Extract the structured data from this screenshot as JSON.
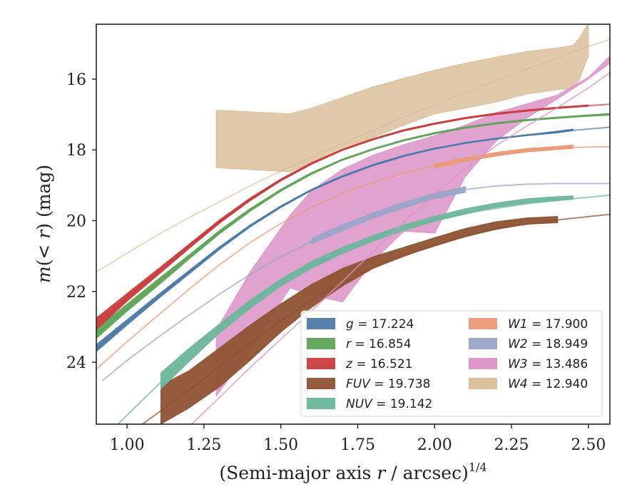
{
  "chart_data": {
    "type": "line",
    "title": "",
    "xlabel": "(Semi-major axis r / arcsec)^1/4",
    "xlabel_parts": {
      "prefix": "(Semi-major axis ",
      "var": "r",
      "middle": " / arcsec)",
      "sup": "1/4"
    },
    "ylabel": "m(< r) (mag)",
    "ylabel_parts": {
      "m": "m",
      "open": "(",
      "lt": "< ",
      "r": "r",
      "close": ")",
      "unit": " (mag)"
    },
    "xlim": [
      0.9,
      2.57
    ],
    "ylim": [
      25.75,
      14.45
    ],
    "y_inverted": true,
    "x_ticks": [
      1.0,
      1.25,
      1.5,
      1.75,
      2.0,
      2.25,
      2.5
    ],
    "x_tick_labels": [
      "1.00",
      "1.25",
      "1.50",
      "1.75",
      "2.00",
      "2.25",
      "2.50"
    ],
    "y_ticks": [
      16,
      18,
      20,
      22,
      24
    ],
    "y_tick_labels": [
      "16",
      "18",
      "20",
      "22",
      "24"
    ],
    "grid": false,
    "legend_position": "lower-right",
    "legend_columns": 2,
    "series": [
      {
        "name": "g = 17.224",
        "var": "g",
        "value": "17.224",
        "color": "#4c7aa8",
        "model_x": [
          0.9,
          1.0,
          1.1,
          1.2,
          1.3,
          1.4,
          1.5,
          1.6,
          1.7,
          1.8,
          1.9,
          2.0,
          2.1,
          2.2,
          2.3,
          2.4,
          2.5,
          2.57
        ],
        "model_y": [
          23.62,
          22.87,
          22.16,
          21.47,
          20.78,
          20.15,
          19.6,
          19.13,
          18.75,
          18.43,
          18.17,
          17.96,
          17.8,
          17.68,
          17.58,
          17.49,
          17.41,
          17.36
        ],
        "band_x": [
          0.9,
          1.0,
          1.1,
          1.2,
          1.3,
          1.4,
          1.5,
          1.6,
          1.7,
          1.8,
          1.9,
          2.0,
          2.1,
          2.2,
          2.3,
          2.4,
          2.45
        ],
        "band_lo": [
          23.5,
          22.8,
          22.1,
          21.42,
          20.74,
          20.12,
          19.58,
          19.11,
          18.73,
          18.41,
          18.15,
          17.95,
          17.79,
          17.67,
          17.57,
          17.47,
          17.41
        ],
        "band_hi": [
          23.7,
          22.95,
          22.22,
          21.52,
          20.82,
          20.18,
          19.63,
          19.15,
          18.77,
          18.45,
          18.19,
          17.98,
          17.82,
          17.7,
          17.6,
          17.52,
          17.46
        ]
      },
      {
        "name": "r = 16.854",
        "var": "r",
        "value": "16.854",
        "color": "#5fa458",
        "model_x": [
          0.9,
          1.0,
          1.1,
          1.2,
          1.3,
          1.4,
          1.5,
          1.6,
          1.7,
          1.8,
          1.9,
          2.0,
          2.1,
          2.2,
          2.3,
          2.4,
          2.5,
          2.57
        ],
        "model_y": [
          23.22,
          22.47,
          21.75,
          21.04,
          20.33,
          19.7,
          19.14,
          18.66,
          18.28,
          17.98,
          17.73,
          17.53,
          17.37,
          17.25,
          17.16,
          17.09,
          17.03,
          17.0
        ],
        "band_x": [
          0.9,
          1.0,
          1.1,
          1.2,
          1.3,
          1.4,
          1.5,
          1.6,
          1.7,
          1.8,
          1.9,
          2.0,
          2.1,
          2.2,
          2.3,
          2.4,
          2.5,
          2.57
        ],
        "band_lo": [
          23.05,
          22.36,
          21.66,
          20.98,
          20.28,
          19.66,
          19.11,
          18.64,
          18.26,
          17.96,
          17.71,
          17.51,
          17.35,
          17.23,
          17.14,
          17.07,
          17.01,
          16.97
        ],
        "band_hi": [
          23.33,
          22.56,
          21.84,
          21.1,
          20.38,
          19.74,
          19.17,
          18.69,
          18.3,
          18.0,
          17.75,
          17.55,
          17.39,
          17.27,
          17.18,
          17.11,
          17.05,
          17.02
        ]
      },
      {
        "name": "z = 16.521",
        "var": "z",
        "value": "16.521",
        "color": "#c83c3c",
        "model_x": [
          0.9,
          1.0,
          1.1,
          1.2,
          1.3,
          1.4,
          1.5,
          1.6,
          1.7,
          1.8,
          1.9,
          2.0,
          2.1,
          2.2,
          2.3,
          2.4,
          2.5,
          2.57
        ],
        "model_y": [
          22.95,
          22.18,
          21.46,
          20.74,
          20.03,
          19.4,
          18.85,
          18.38,
          18.0,
          17.7,
          17.45,
          17.26,
          17.1,
          16.98,
          16.89,
          16.81,
          16.75,
          16.71
        ],
        "band_x": [
          0.9,
          1.0,
          1.1,
          1.2,
          1.3,
          1.4,
          1.5,
          1.6,
          1.7,
          1.8,
          1.9,
          2.0,
          2.1,
          2.2,
          2.3,
          2.4,
          2.5
        ],
        "band_lo": [
          22.75,
          22.06,
          21.37,
          20.68,
          19.98,
          19.36,
          18.82,
          18.36,
          17.98,
          17.68,
          17.43,
          17.24,
          17.08,
          16.96,
          16.87,
          16.79,
          16.73
        ],
        "band_hi": [
          23.08,
          22.28,
          21.54,
          20.8,
          20.08,
          19.44,
          18.88,
          18.41,
          18.02,
          17.72,
          17.47,
          17.28,
          17.12,
          17.0,
          16.91,
          16.83,
          16.77
        ]
      },
      {
        "name": "FUV = 19.738",
        "var": "FUV",
        "value": "19.738",
        "color": "#8e5332",
        "model_x": [
          1.05,
          1.2,
          1.4,
          1.6,
          1.8,
          2.0,
          2.2,
          2.4,
          2.57
        ],
        "model_y": [
          25.75,
          24.8,
          23.45,
          22.22,
          21.33,
          20.68,
          20.22,
          19.98,
          19.82
        ],
        "band_x": [
          1.11,
          1.2,
          1.3,
          1.4,
          1.5,
          1.6,
          1.7,
          1.8,
          1.9,
          2.0,
          2.1,
          2.2,
          2.3,
          2.4
        ],
        "band_lo": [
          25.75,
          25.3,
          24.7,
          23.95,
          23.15,
          22.45,
          21.85,
          21.35,
          21.0,
          20.72,
          20.45,
          20.25,
          20.1,
          20.06
        ],
        "band_hi": [
          24.65,
          24.25,
          23.6,
          22.95,
          22.35,
          21.8,
          21.35,
          21.02,
          20.75,
          20.48,
          20.22,
          20.03,
          19.92,
          19.88
        ]
      },
      {
        "name": "NUV = 19.142",
        "var": "NUV",
        "value": "19.142",
        "color": "#6db69c",
        "model_x": [
          0.97,
          1.1,
          1.25,
          1.4,
          1.55,
          1.7,
          1.85,
          2.0,
          2.15,
          2.3,
          2.45,
          2.57
        ],
        "model_y": [
          25.75,
          24.65,
          23.35,
          22.28,
          21.45,
          20.85,
          20.38,
          20.0,
          19.72,
          19.52,
          19.38,
          19.28
        ],
        "band_x": [
          1.11,
          1.2,
          1.3,
          1.4,
          1.5,
          1.6,
          1.7,
          1.8,
          1.9,
          2.0,
          2.1,
          2.2,
          2.3,
          2.4,
          2.45
        ],
        "band_lo": [
          24.75,
          24.0,
          23.18,
          22.48,
          21.85,
          21.35,
          20.93,
          20.58,
          20.28,
          20.02,
          19.8,
          19.62,
          19.5,
          19.43,
          19.4
        ],
        "band_hi": [
          24.3,
          23.62,
          22.92,
          22.25,
          21.65,
          21.15,
          20.75,
          20.42,
          20.12,
          19.88,
          19.66,
          19.5,
          19.38,
          19.32,
          19.3
        ]
      },
      {
        "name": "W1 = 17.900",
        "var": "W1",
        "value": "17.900",
        "color": "#eb9a78",
        "model_x": [
          0.9,
          1.0,
          1.1,
          1.2,
          1.3,
          1.4,
          1.5,
          1.6,
          1.7,
          1.8,
          1.9,
          2.0,
          2.1,
          2.2,
          2.3,
          2.4,
          2.5,
          2.57
        ],
        "model_y": [
          24.2,
          23.42,
          22.68,
          21.95,
          21.25,
          20.62,
          20.08,
          19.62,
          19.24,
          18.92,
          18.66,
          18.44,
          18.26,
          18.12,
          18.02,
          17.96,
          17.92,
          17.91
        ],
        "band_x": [
          2.0,
          2.1,
          2.2,
          2.3,
          2.4,
          2.45
        ],
        "band_lo": [
          18.52,
          18.33,
          18.17,
          18.06,
          17.99,
          17.96
        ],
        "band_hi": [
          18.4,
          18.22,
          18.07,
          17.96,
          17.9,
          17.86
        ]
      },
      {
        "name": "W2 = 18.949",
        "var": "W2",
        "value": "18.949",
        "color": "#9aa5c8",
        "model_x": [
          0.92,
          1.0,
          1.1,
          1.2,
          1.3,
          1.4,
          1.5,
          1.6,
          1.7,
          1.8,
          1.9,
          2.0,
          2.1,
          2.2,
          2.3,
          2.4,
          2.5,
          2.57
        ],
        "model_y": [
          24.52,
          23.95,
          23.3,
          22.68,
          22.08,
          21.52,
          21.02,
          20.58,
          20.2,
          19.85,
          19.55,
          19.3,
          19.12,
          19.02,
          18.97,
          18.95,
          18.95,
          18.95
        ],
        "band_x": [
          1.6,
          1.7,
          1.8,
          1.9,
          2.0,
          2.1
        ],
        "band_lo": [
          20.66,
          20.28,
          19.93,
          19.64,
          19.38,
          19.2
        ],
        "band_hi": [
          20.5,
          20.12,
          19.78,
          19.48,
          19.22,
          19.04
        ]
      },
      {
        "name": "W3 = 13.486",
        "var": "W3",
        "value": "13.486",
        "color": "#db93c8",
        "model_x": [
          1.21,
          1.3,
          1.4,
          1.5,
          1.6,
          1.7,
          1.8,
          1.9,
          2.0,
          2.1,
          2.2,
          2.3,
          2.4,
          2.5,
          2.57
        ],
        "model_y": [
          25.75,
          25.0,
          24.15,
          23.35,
          22.55,
          21.72,
          20.88,
          20.05,
          19.25,
          18.52,
          17.88,
          17.32,
          16.8,
          16.25,
          15.82
        ],
        "band_x": [
          1.29,
          1.4,
          1.53,
          1.6,
          1.7,
          1.8,
          1.9,
          2.0,
          2.1,
          2.2,
          2.3,
          2.4,
          2.5,
          2.57
        ],
        "band_lo": [
          24.95,
          23.65,
          21.9,
          22.1,
          22.3,
          21.15,
          20.3,
          20.35,
          18.75,
          17.75,
          17.1,
          16.55,
          16.0,
          15.55
        ],
        "band_hi": [
          23.1,
          21.45,
          19.85,
          19.15,
          18.55,
          18.15,
          17.85,
          17.6,
          17.3,
          16.95,
          16.7,
          16.45,
          15.95,
          15.35
        ]
      },
      {
        "name": "W4 = 12.940",
        "var": "W4",
        "value": "12.940",
        "color": "#d9bd98",
        "model_x": [
          0.9,
          1.0,
          1.1,
          1.2,
          1.3,
          1.4,
          1.5,
          1.6,
          1.7,
          1.8,
          1.9,
          2.0,
          2.1,
          2.2,
          2.3,
          2.4,
          2.5,
          2.57
        ],
        "model_y": [
          21.45,
          20.92,
          20.4,
          19.92,
          19.47,
          19.02,
          18.6,
          18.2,
          17.82,
          17.45,
          17.08,
          16.72,
          16.38,
          16.05,
          15.72,
          15.4,
          15.08,
          14.88
        ],
        "band_x": [
          1.29,
          1.53,
          1.6,
          1.7,
          1.8,
          1.9,
          2.0,
          2.1,
          2.2,
          2.3,
          2.4,
          2.45,
          2.47,
          2.5
        ],
        "band_lo": [
          18.5,
          18.62,
          18.38,
          18.0,
          17.65,
          17.3,
          16.98,
          16.82,
          16.65,
          16.42,
          16.3,
          16.25,
          16.02,
          15.35
        ],
        "band_hi": [
          16.88,
          16.98,
          16.82,
          16.52,
          16.22,
          15.98,
          15.75,
          15.55,
          15.38,
          15.22,
          15.12,
          15.05,
          14.85,
          14.42
        ]
      }
    ]
  }
}
